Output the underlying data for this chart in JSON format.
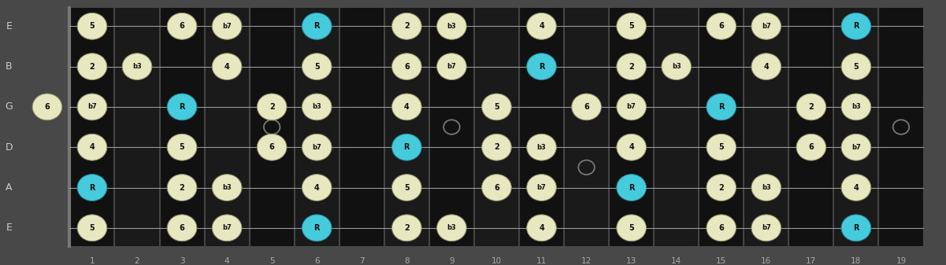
{
  "bg_color": "#484848",
  "fretboard_color": "#111111",
  "fret_odd_color": "#111111",
  "fret_even_color": "#1a1a1a",
  "fret_line_color": "#444444",
  "nut_color": "#777777",
  "string_color": "#999999",
  "note_normal": "#e8e8c0",
  "note_root": "#44ccdd",
  "note_text": "#111111",
  "string_label_color": "#cccccc",
  "fret_label_color": "#aaaaaa",
  "string_names": [
    "E",
    "B",
    "G",
    "D",
    "A",
    "E"
  ],
  "fret_numbers": [
    1,
    2,
    3,
    4,
    5,
    6,
    7,
    8,
    9,
    10,
    11,
    12,
    13,
    14,
    15,
    16,
    17,
    18,
    19
  ],
  "inlay_circles": [
    [
      9,
      1.5
    ],
    [
      9,
      2.5
    ],
    [
      19,
      2.5
    ]
  ],
  "inlay_single": [
    5,
    12
  ],
  "notes": [
    {
      "s": 0,
      "f": 1,
      "l": "5",
      "r": false
    },
    {
      "s": 0,
      "f": 3,
      "l": "6",
      "r": false
    },
    {
      "s": 0,
      "f": 4,
      "l": "b7",
      "r": false
    },
    {
      "s": 0,
      "f": 6,
      "l": "R",
      "r": true
    },
    {
      "s": 0,
      "f": 8,
      "l": "2",
      "r": false
    },
    {
      "s": 0,
      "f": 9,
      "l": "b3",
      "r": false
    },
    {
      "s": 0,
      "f": 11,
      "l": "4",
      "r": false
    },
    {
      "s": 0,
      "f": 13,
      "l": "5",
      "r": false
    },
    {
      "s": 0,
      "f": 15,
      "l": "6",
      "r": false
    },
    {
      "s": 0,
      "f": 16,
      "l": "b7",
      "r": false
    },
    {
      "s": 0,
      "f": 18,
      "l": "R",
      "r": true
    },
    {
      "s": 1,
      "f": 1,
      "l": "2",
      "r": false
    },
    {
      "s": 1,
      "f": 2,
      "l": "b3",
      "r": false
    },
    {
      "s": 1,
      "f": 4,
      "l": "4",
      "r": false
    },
    {
      "s": 1,
      "f": 6,
      "l": "5",
      "r": false
    },
    {
      "s": 1,
      "f": 8,
      "l": "6",
      "r": false
    },
    {
      "s": 1,
      "f": 9,
      "l": "b7",
      "r": false
    },
    {
      "s": 1,
      "f": 11,
      "l": "R",
      "r": true
    },
    {
      "s": 1,
      "f": 13,
      "l": "2",
      "r": false
    },
    {
      "s": 1,
      "f": 14,
      "l": "b3",
      "r": false
    },
    {
      "s": 1,
      "f": 16,
      "l": "4",
      "r": false
    },
    {
      "s": 1,
      "f": 18,
      "l": "5",
      "r": false
    },
    {
      "s": 2,
      "f": 0,
      "l": "6",
      "r": false
    },
    {
      "s": 2,
      "f": 1,
      "l": "b7",
      "r": false
    },
    {
      "s": 2,
      "f": 3,
      "l": "R",
      "r": true
    },
    {
      "s": 2,
      "f": 5,
      "l": "2",
      "r": false
    },
    {
      "s": 2,
      "f": 6,
      "l": "b3",
      "r": false
    },
    {
      "s": 2,
      "f": 8,
      "l": "4",
      "r": false
    },
    {
      "s": 2,
      "f": 10,
      "l": "5",
      "r": false
    },
    {
      "s": 2,
      "f": 12,
      "l": "6",
      "r": false
    },
    {
      "s": 2,
      "f": 13,
      "l": "b7",
      "r": false
    },
    {
      "s": 2,
      "f": 15,
      "l": "R",
      "r": true
    },
    {
      "s": 2,
      "f": 17,
      "l": "2",
      "r": false
    },
    {
      "s": 2,
      "f": 18,
      "l": "b3",
      "r": false
    },
    {
      "s": 3,
      "f": 1,
      "l": "4",
      "r": false
    },
    {
      "s": 3,
      "f": 3,
      "l": "5",
      "r": false
    },
    {
      "s": 3,
      "f": 5,
      "l": "6",
      "r": false
    },
    {
      "s": 3,
      "f": 6,
      "l": "b7",
      "r": false
    },
    {
      "s": 3,
      "f": 8,
      "l": "R",
      "r": true
    },
    {
      "s": 3,
      "f": 10,
      "l": "2",
      "r": false
    },
    {
      "s": 3,
      "f": 11,
      "l": "b3",
      "r": false
    },
    {
      "s": 3,
      "f": 13,
      "l": "4",
      "r": false
    },
    {
      "s": 3,
      "f": 15,
      "l": "5",
      "r": false
    },
    {
      "s": 3,
      "f": 17,
      "l": "6",
      "r": false
    },
    {
      "s": 3,
      "f": 18,
      "l": "b7",
      "r": false
    },
    {
      "s": 4,
      "f": 1,
      "l": "R",
      "r": true
    },
    {
      "s": 4,
      "f": 3,
      "l": "2",
      "r": false
    },
    {
      "s": 4,
      "f": 4,
      "l": "b3",
      "r": false
    },
    {
      "s": 4,
      "f": 6,
      "l": "4",
      "r": false
    },
    {
      "s": 4,
      "f": 8,
      "l": "5",
      "r": false
    },
    {
      "s": 4,
      "f": 10,
      "l": "6",
      "r": false
    },
    {
      "s": 4,
      "f": 11,
      "l": "b7",
      "r": false
    },
    {
      "s": 4,
      "f": 13,
      "l": "R",
      "r": true
    },
    {
      "s": 4,
      "f": 15,
      "l": "2",
      "r": false
    },
    {
      "s": 4,
      "f": 16,
      "l": "b3",
      "r": false
    },
    {
      "s": 4,
      "f": 18,
      "l": "4",
      "r": false
    },
    {
      "s": 5,
      "f": 1,
      "l": "5",
      "r": false
    },
    {
      "s": 5,
      "f": 3,
      "l": "6",
      "r": false
    },
    {
      "s": 5,
      "f": 4,
      "l": "b7",
      "r": false
    },
    {
      "s": 5,
      "f": 6,
      "l": "R",
      "r": true
    },
    {
      "s": 5,
      "f": 8,
      "l": "2",
      "r": false
    },
    {
      "s": 5,
      "f": 9,
      "l": "b3",
      "r": false
    },
    {
      "s": 5,
      "f": 11,
      "l": "4",
      "r": false
    },
    {
      "s": 5,
      "f": 13,
      "l": "5",
      "r": false
    },
    {
      "s": 5,
      "f": 15,
      "l": "6",
      "r": false
    },
    {
      "s": 5,
      "f": 16,
      "l": "b7",
      "r": false
    },
    {
      "s": 5,
      "f": 18,
      "l": "R",
      "r": true
    }
  ]
}
